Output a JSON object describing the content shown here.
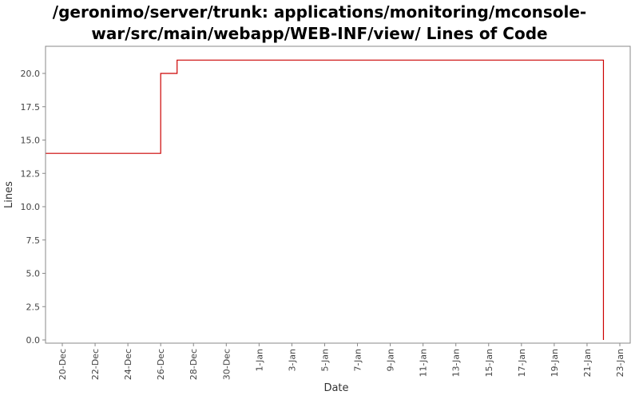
{
  "chart_data": {
    "type": "line",
    "title": "/geronimo/server/trunk: applications/monitoring/mconsole-\nwar/src/main/webapp/WEB-INF/view/ Lines of Code",
    "xlabel": "Date",
    "ylabel": "Lines",
    "ylim": [
      0,
      22
    ],
    "xlim": [
      "19-Dec",
      "23-Jan"
    ],
    "x_ticks": [
      "20-Dec",
      "22-Dec",
      "24-Dec",
      "26-Dec",
      "28-Dec",
      "30-Dec",
      "1-Jan",
      "3-Jan",
      "5-Jan",
      "7-Jan",
      "9-Jan",
      "11-Jan",
      "13-Jan",
      "15-Jan",
      "17-Jan",
      "19-Jan",
      "21-Jan",
      "23-Jan"
    ],
    "y_ticks": [
      "0.0",
      "2.5",
      "5.0",
      "7.5",
      "10.0",
      "12.5",
      "15.0",
      "17.5",
      "20.0"
    ],
    "grid": false,
    "step": true,
    "series": [
      {
        "color": "#cc0000",
        "x": [
          "19-Dec",
          "26-Dec",
          "27-Dec",
          "22-Jan",
          "22-Jan"
        ],
        "y": [
          14,
          20,
          21,
          21,
          0
        ]
      }
    ]
  }
}
